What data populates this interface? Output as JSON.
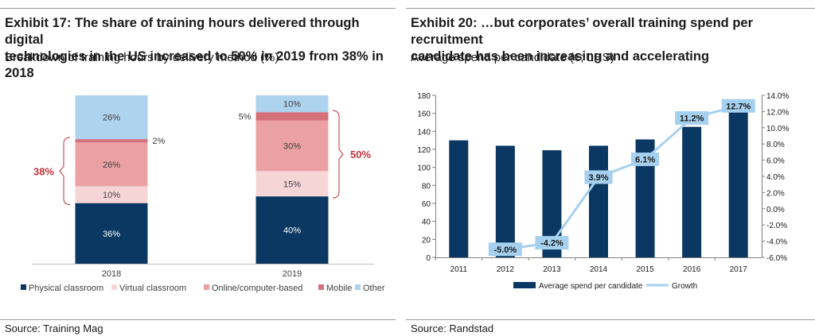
{
  "left": {
    "title_line1": "Exhibit 17: The share of training hours delivered through digital",
    "title_line2": "technologies in the US increased to 50% in 2019 from 38% in 2018",
    "subtitle": "Breakdown of training hours by delivery method (%)",
    "source": "Source: Training Mag"
  },
  "right": {
    "title_line1": "Exhibit 20: …but corporates’ overall training spend per recruitment",
    "title_line2": "candidate has been increasing and accelerating",
    "subtitle": "Average spend per candidate (€; LHS)",
    "source": "Source: Randstad"
  },
  "colors": {
    "Physical classroom": "#0b3863",
    "Virtual classroom": "#f6d5d7",
    "Online/computer-based": "#eba1a4",
    "Mobile": "#d4707a",
    "Other": "#aed3ef",
    "bar": "#0b3863",
    "line": "#a6d0ef",
    "bracket": "#c0333e"
  },
  "chart_data": [
    {
      "type": "bar",
      "stacked": true,
      "categories": [
        "2018",
        "2019"
      ],
      "series": [
        {
          "name": "Physical classroom",
          "values": [
            36,
            40
          ],
          "labels": [
            "36%",
            "40%"
          ]
        },
        {
          "name": "Virtual classroom",
          "values": [
            10,
            15
          ],
          "labels": [
            "10%",
            "15%"
          ]
        },
        {
          "name": "Online/computer-based",
          "values": [
            26,
            30
          ],
          "labels": [
            "26%",
            "30%"
          ]
        },
        {
          "name": "Mobile",
          "values": [
            2,
            5
          ],
          "labels": [
            "2%",
            "5%"
          ]
        },
        {
          "name": "Other",
          "values": [
            26,
            10
          ],
          "labels": [
            "26%",
            "10%"
          ]
        }
      ],
      "annotations": [
        {
          "category": "2018",
          "text": "38%",
          "spans": [
            "Virtual classroom",
            "Online/computer-based",
            "Mobile"
          ]
        },
        {
          "category": "2019",
          "text": "50%",
          "spans": [
            "Virtual classroom",
            "Online/computer-based",
            "Mobile"
          ]
        }
      ],
      "legend": "bottom"
    },
    {
      "type": "bar",
      "categories": [
        "2011",
        "2012",
        "2013",
        "2014",
        "2015",
        "2016",
        "2017"
      ],
      "series": [
        {
          "name": "Average spend per candidate",
          "type": "bar",
          "axis": "left",
          "values": [
            130,
            124,
            119,
            124,
            131,
            145,
            163
          ]
        },
        {
          "name": "Growth",
          "type": "line",
          "axis": "right",
          "values": [
            null,
            -5.0,
            -4.2,
            3.9,
            6.1,
            11.2,
            12.7
          ],
          "labels": [
            null,
            "-5.0%",
            "-4.2%",
            "3.9%",
            "6.1%",
            "11.2%",
            "12.7%"
          ]
        }
      ],
      "y_left": {
        "ylim": [
          0,
          180
        ],
        "ticks": [
          "0",
          "20",
          "40",
          "60",
          "80",
          "100",
          "120",
          "140",
          "160",
          "180"
        ]
      },
      "y_right": {
        "ylim": [
          -6,
          14
        ],
        "ticks": [
          "-6.0%",
          "-4.0%",
          "-2.0%",
          "0.0%",
          "2.0%",
          "4.0%",
          "6.0%",
          "8.0%",
          "10.0%",
          "12.0%",
          "14.0%"
        ]
      },
      "legend": "bottom",
      "grid": false
    }
  ]
}
